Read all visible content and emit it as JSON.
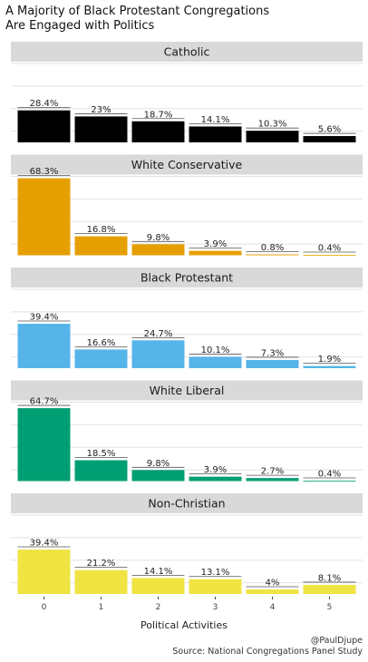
{
  "title_lines": [
    "A Majority of Black Protestant Congregations",
    "Are Engaged with Politics"
  ],
  "credit": "@PaulDjupe",
  "source": "Source: National Congregations Panel Study",
  "chart_data": {
    "type": "bar",
    "xlabel": "Political Activities",
    "categories": [
      "0",
      "1",
      "2",
      "3",
      "4",
      "5"
    ],
    "ylim": [
      0,
      70
    ],
    "grid": true,
    "panels": [
      {
        "name": "Catholic",
        "color": "#000000",
        "values": [
          28.4,
          23,
          18.7,
          14.1,
          10.3,
          5.6
        ],
        "labels": [
          "28.4%",
          "23%",
          "18.7%",
          "14.1%",
          "10.3%",
          "5.6%"
        ]
      },
      {
        "name": "White Conservative",
        "color": "#E69F00",
        "values": [
          68.3,
          16.8,
          9.8,
          3.9,
          0.8,
          0.4
        ],
        "labels": [
          "68.3%",
          "16.8%",
          "9.8%",
          "3.9%",
          "0.8%",
          "0.4%"
        ]
      },
      {
        "name": "Black Protestant",
        "color": "#56B4E9",
        "values": [
          39.4,
          16.6,
          24.7,
          10.1,
          7.3,
          1.9
        ],
        "labels": [
          "39.4%",
          "16.6%",
          "24.7%",
          "10.1%",
          "7.3%",
          "1.9%"
        ]
      },
      {
        "name": "White Liberal",
        "color": "#009E73",
        "values": [
          64.7,
          18.5,
          9.8,
          3.9,
          2.7,
          0.4
        ],
        "labels": [
          "64.7%",
          "18.5%",
          "9.8%",
          "3.9%",
          "2.7%",
          "0.4%"
        ]
      },
      {
        "name": "Non-Christian",
        "color": "#F0E442",
        "values": [
          39.4,
          21.2,
          14.1,
          13.1,
          4,
          8.1
        ],
        "labels": [
          "39.4%",
          "21.2%",
          "14.1%",
          "13.1%",
          "4%",
          "8.1%"
        ]
      }
    ]
  }
}
